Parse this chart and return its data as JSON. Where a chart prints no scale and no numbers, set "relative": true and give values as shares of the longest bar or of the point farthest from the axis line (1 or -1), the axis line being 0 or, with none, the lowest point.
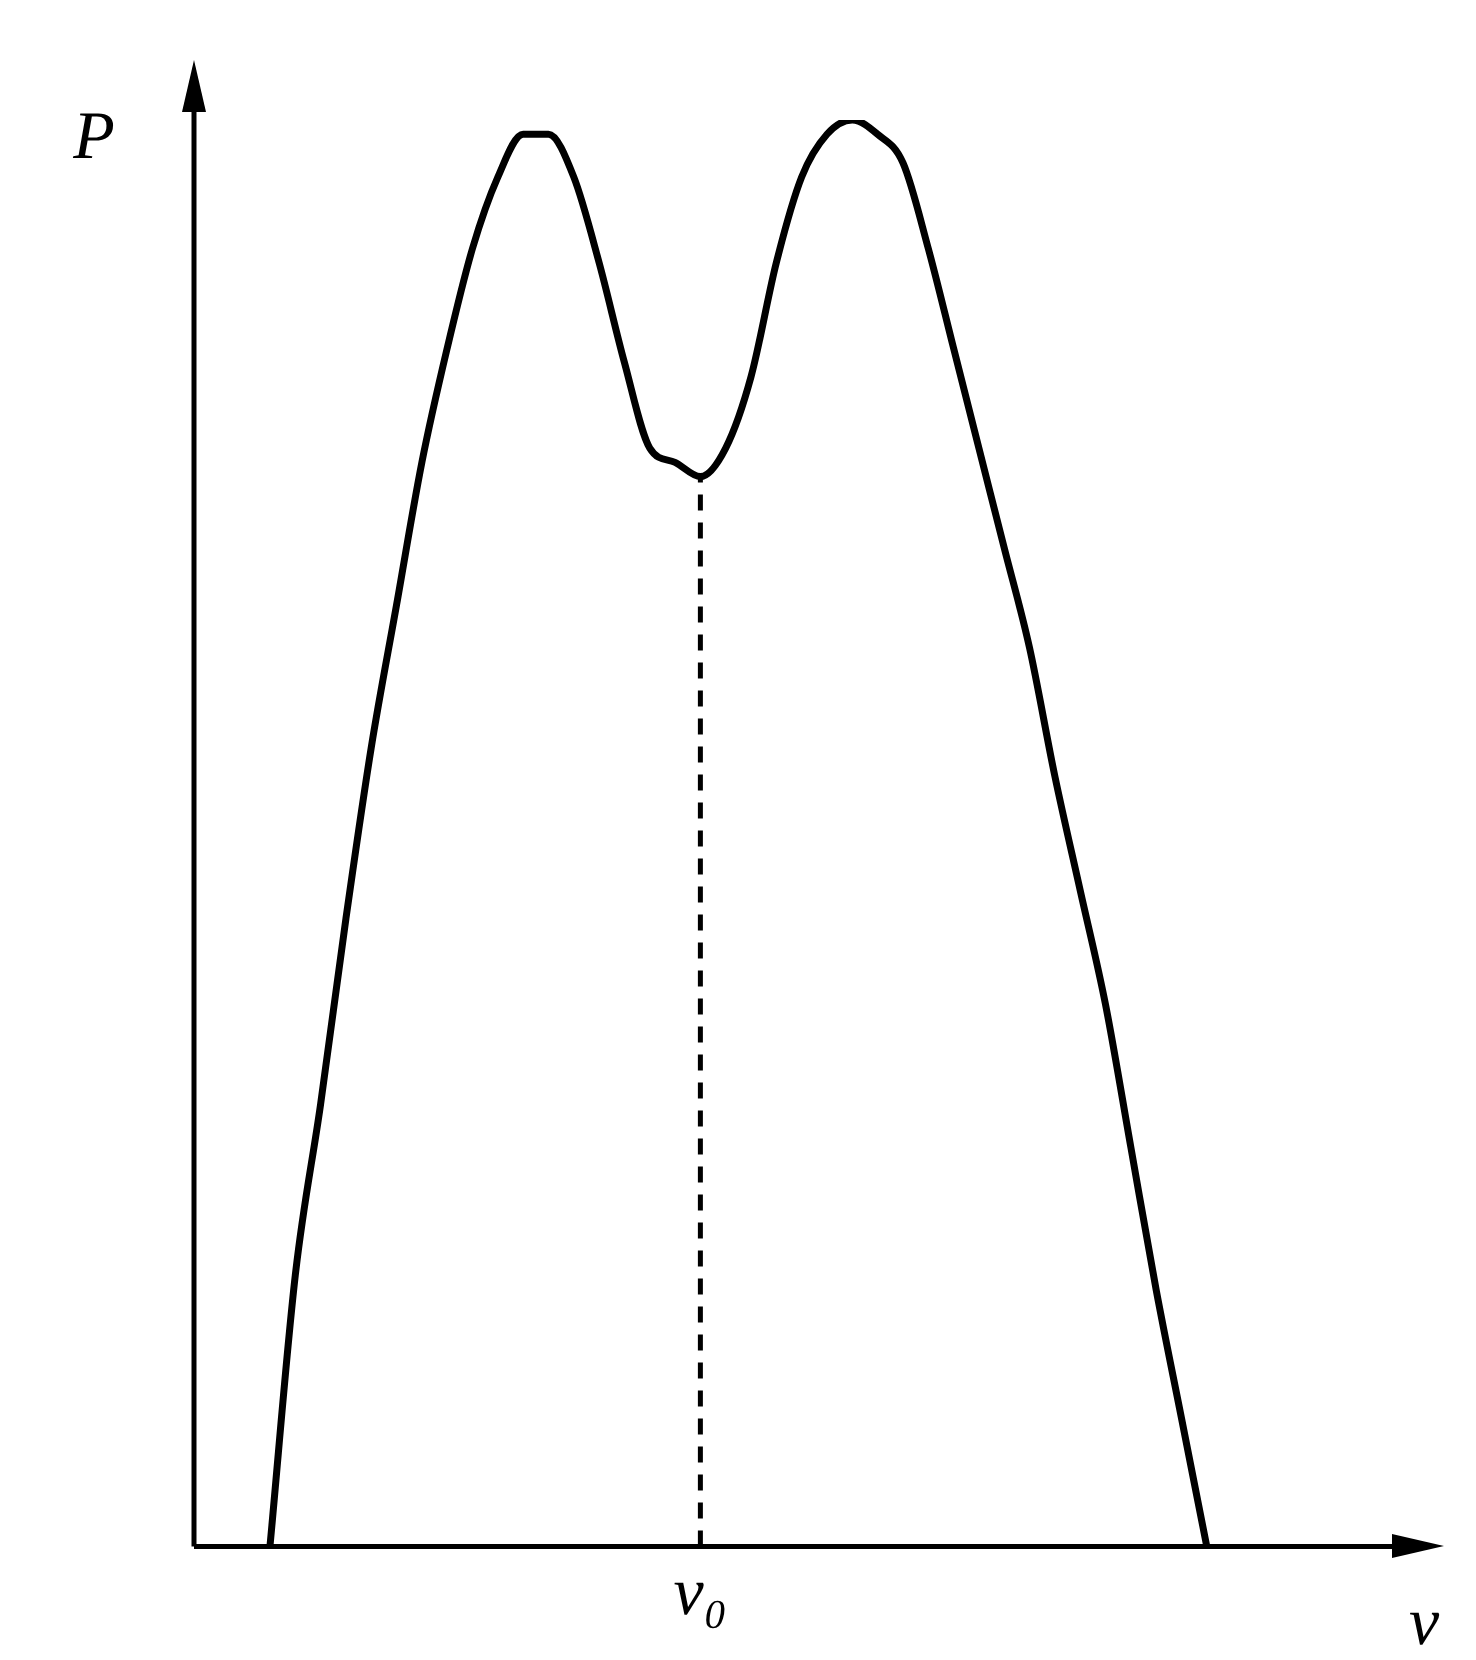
{
  "chart_data": {
    "type": "line",
    "relative": true,
    "xlabel": "ν",
    "ylabel": "P",
    "marker": "none",
    "line_style": "solid",
    "grid": false,
    "legend": false,
    "categories": [
      null,
      null,
      null,
      null,
      null,
      null,
      null,
      null,
      null,
      null,
      null,
      null,
      null,
      null,
      null,
      null,
      null,
      null,
      null,
      null,
      null,
      null,
      null,
      null,
      null,
      null,
      null,
      null,
      null,
      null,
      null,
      null,
      null,
      null,
      null,
      null,
      null,
      null,
      null,
      null,
      null,
      null,
      null,
      null,
      null,
      null,
      null,
      null
    ],
    "series": [
      {
        "color": "#000000",
        "values": [
          null,
          null,
          null,
          0,
          0.19,
          0.31,
          0.44,
          0.56,
          0.66,
          0.76,
          0.84,
          0.91,
          0.96,
          0.99,
          0.99,
          0.96,
          0.9,
          0.83,
          0.77,
          0.76,
          0.75,
          0.77,
          0.82,
          0.9,
          0.96,
          0.99,
          1,
          0.99,
          0.97,
          0.91,
          0.84,
          0.77,
          0.7,
          0.63,
          0.54,
          0.46,
          0.38,
          0.28,
          0.18,
          0.09,
          0,
          null,
          null,
          null,
          null,
          null,
          null,
          null
        ]
      }
    ],
    "ref_lines": [
      {
        "axis": "x",
        "label": "ν₀",
        "line_style": "dashed"
      }
    ]
  }
}
